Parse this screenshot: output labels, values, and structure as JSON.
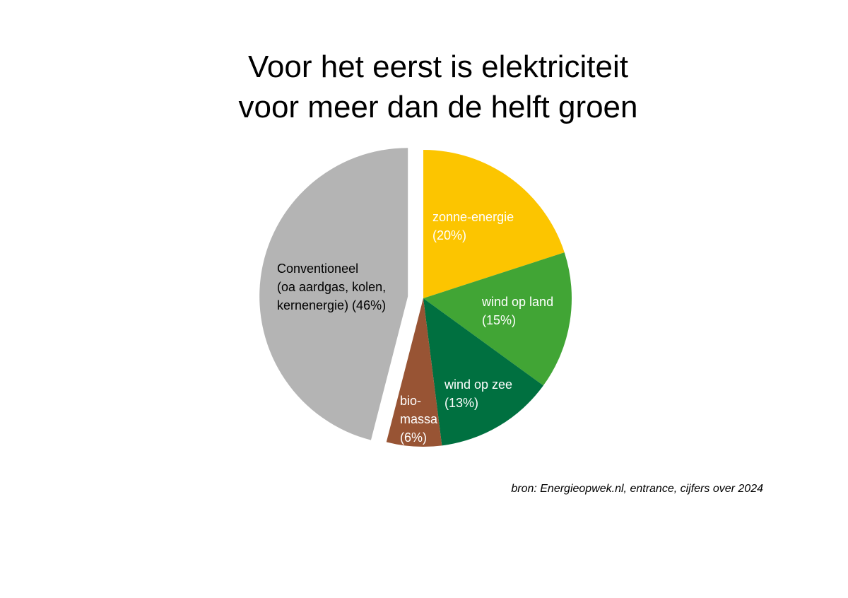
{
  "title": {
    "line1": "Voor het eerst is elektriciteit",
    "line2": "voor meer dan de helft groen"
  },
  "source": "bron: Energieopwek.nl, entrance, cijfers over 2024",
  "chart_data": {
    "type": "pie",
    "title": "Voor het eerst is elektriciteit voor meer dan de helft groen",
    "start": "12 o'clock, clockwise",
    "exploded": "Conventioneel",
    "slices": [
      {
        "name": "zonne-energie",
        "value": 20,
        "color": "#FCC500",
        "label_lines": [
          "zonne-energie",
          "(20%)"
        ],
        "label_color": "#FFFFFF"
      },
      {
        "name": "wind op land",
        "value": 15,
        "color": "#41A535",
        "label_lines": [
          "wind op land",
          "(15%)"
        ],
        "label_color": "#FFFFFF"
      },
      {
        "name": "wind op zee",
        "value": 13,
        "color": "#007040",
        "label_lines": [
          "wind op zee",
          "(13%)"
        ],
        "label_color": "#FFFFFF"
      },
      {
        "name": "biomassa",
        "value": 6,
        "color": "#985434",
        "label_lines": [
          "bio-",
          "massa",
          "(6%)"
        ],
        "label_color": "#FFFFFF"
      },
      {
        "name": "Conventioneel",
        "value": 46,
        "color": "#B4B4B4",
        "label_lines": [
          "Conventioneel",
          "(oa aardgas, kolen,",
          "kernenergie) (46%)"
        ],
        "label_color": "#000000"
      }
    ]
  }
}
